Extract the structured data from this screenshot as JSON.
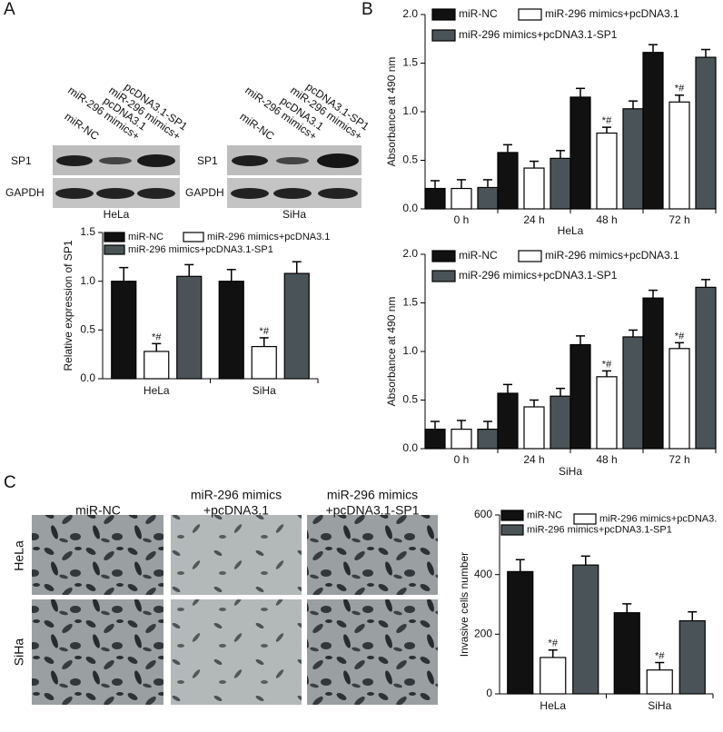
{
  "panel_labels": [
    "A",
    "B",
    "C"
  ],
  "blot": {
    "lanes": [
      [
        "miR-NC"
      ],
      [
        "pcDNA3.1",
        "miR-296 mimics+"
      ],
      [
        "pcDNA3.1-SP1",
        "miR-296 mimics+"
      ]
    ],
    "rows": [
      "SP1",
      "GAPDH"
    ],
    "cells": [
      "HeLa",
      "SiHa"
    ]
  },
  "micrographs": {
    "columns": [
      [
        "miR-NC"
      ],
      [
        "miR-296 mimics",
        "+pcDNA3.1"
      ],
      [
        "miR-296 mimics",
        "+pcDNA3.1-SP1"
      ]
    ],
    "rows": [
      "HeLa",
      "SiHa"
    ]
  },
  "chart_data": [
    {
      "type": "bar",
      "ylabel": "Relative expression of SP1",
      "categories": [
        "HeLa",
        "SiHa"
      ],
      "ylim": [
        0,
        1.5
      ],
      "yticks": [
        {
          "value": 0,
          "label": "0.0"
        },
        0.5,
        {
          "value": 1,
          "label": "1.0"
        },
        1.5
      ],
      "series": [
        {
          "name": "miR-NC",
          "color": "#111111",
          "values": [
            1.0,
            1.0
          ],
          "errors": [
            0.14,
            0.12
          ]
        },
        {
          "name": "miR-296 mimics+pcDNA3.1",
          "color": "#ffffff",
          "values": [
            0.28,
            0.33
          ],
          "errors": [
            0.08,
            0.09
          ],
          "annotations": [
            "*#",
            "*#"
          ]
        },
        {
          "name": "miR-296 mimics+pcDNA3.1-SP1",
          "color": "#4a5458",
          "values": [
            1.05,
            1.08
          ],
          "errors": [
            0.12,
            0.12
          ]
        }
      ]
    },
    {
      "type": "bar",
      "ylabel": "Absorbance at 490 nm",
      "xlabel": "HeLa",
      "categories": [
        "0 h",
        "24 h",
        "48 h",
        "72 h"
      ],
      "ylim": [
        0,
        2
      ],
      "yticks": [
        {
          "value": 0,
          "label": "0.0"
        },
        0.5,
        {
          "value": 1,
          "label": "1.0"
        },
        1.5,
        {
          "value": 2,
          "label": "2.0"
        }
      ],
      "series": [
        {
          "name": "miR-NC",
          "color": "#111111",
          "values": [
            0.21,
            0.58,
            1.15,
            1.61
          ],
          "errors": [
            0.08,
            0.08,
            0.09,
            0.08
          ]
        },
        {
          "name": "miR-296 mimics+pcDNA3.1",
          "color": "#ffffff",
          "values": [
            0.21,
            0.42,
            0.78,
            1.1
          ],
          "errors": [
            0.09,
            0.07,
            0.06,
            0.07
          ],
          "annotations": [
            null,
            null,
            "*#",
            "*#"
          ]
        },
        {
          "name": "miR-296 mimics+pcDNA3.1-SP1",
          "color": "#4a5458",
          "values": [
            0.22,
            0.52,
            1.03,
            1.56
          ],
          "errors": [
            0.08,
            0.08,
            0.08,
            0.08
          ]
        }
      ]
    },
    {
      "type": "bar",
      "ylabel": "Absorbance at 490 nm",
      "xlabel": "SiHa",
      "categories": [
        "0 h",
        "24 h",
        "48 h",
        "72 h"
      ],
      "ylim": [
        0,
        2
      ],
      "yticks": [
        {
          "value": 0,
          "label": "0.0"
        },
        0.5,
        {
          "value": 1,
          "label": "1.0"
        },
        1.5,
        {
          "value": 2,
          "label": "2.0"
        }
      ],
      "series": [
        {
          "name": "miR-NC",
          "color": "#111111",
          "values": [
            0.2,
            0.57,
            1.07,
            1.55
          ],
          "errors": [
            0.08,
            0.09,
            0.09,
            0.08
          ]
        },
        {
          "name": "miR-296 mimics+pcDNA3.1",
          "color": "#ffffff",
          "values": [
            0.2,
            0.43,
            0.74,
            1.03
          ],
          "errors": [
            0.09,
            0.07,
            0.06,
            0.06
          ],
          "annotations": [
            null,
            null,
            "*#",
            "*#"
          ]
        },
        {
          "name": "miR-296 mimics+pcDNA3.1-SP1",
          "color": "#4a5458",
          "values": [
            0.2,
            0.54,
            1.15,
            1.66
          ],
          "errors": [
            0.08,
            0.08,
            0.07,
            0.08
          ]
        }
      ]
    },
    {
      "type": "bar",
      "ylabel": "Invasive cells number",
      "categories": [
        "HeLa",
        "SiHa"
      ],
      "ylim": [
        0,
        600
      ],
      "yticks": [
        0,
        200,
        400,
        600
      ],
      "series": [
        {
          "name": "miR-NC",
          "color": "#111111",
          "values": [
            410,
            272
          ],
          "errors": [
            40,
            30
          ]
        },
        {
          "name": "miR-296 mimics+pcDNA3.",
          "color": "#ffffff",
          "values": [
            122,
            80
          ],
          "errors": [
            25,
            25
          ],
          "annotations": [
            "*#",
            "*#"
          ]
        },
        {
          "name": "miR-296 mimics+pcDNA3.1-SP1",
          "color": "#4a5458",
          "values": [
            432,
            245
          ],
          "errors": [
            30,
            30
          ]
        }
      ]
    }
  ]
}
